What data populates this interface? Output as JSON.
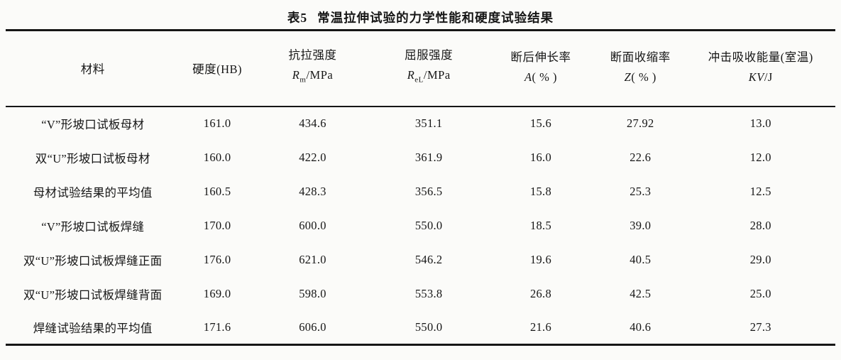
{
  "table": {
    "caption_label": "表5",
    "caption_title": "常温拉伸试验的力学性能和硬度试验结果",
    "columns": [
      {
        "label": "材料"
      },
      {
        "label": "硬度(HB)"
      },
      {
        "label": "抗拉强度",
        "symbol": "R",
        "subscript": "m",
        "unit": "/MPa"
      },
      {
        "label": "屈服强度",
        "symbol": "R",
        "subscript": "eL",
        "unit": "/MPa"
      },
      {
        "label": "断后伸长率",
        "symbol": "A",
        "subscript": "",
        "unit": "( % )"
      },
      {
        "label": "断面收缩率",
        "symbol": "Z",
        "subscript": "",
        "unit": "( % )"
      },
      {
        "label": "冲击吸收能量(室温)",
        "symbol": "KV",
        "subscript": "",
        "unit": "/J"
      }
    ],
    "rows": [
      {
        "material": "“V”形坡口试板母材",
        "values": [
          "161.0",
          "434.6",
          "351.1",
          "15.6",
          "27.92",
          "13.0"
        ]
      },
      {
        "material": "双“U”形坡口试板母材",
        "values": [
          "160.0",
          "422.0",
          "361.9",
          "16.0",
          "22.6",
          "12.0"
        ]
      },
      {
        "material": "母材试验结果的平均值",
        "values": [
          "160.5",
          "428.3",
          "356.5",
          "15.8",
          "25.3",
          "12.5"
        ]
      },
      {
        "material": "“V”形坡口试板焊缝",
        "values": [
          "170.0",
          "600.0",
          "550.0",
          "18.5",
          "39.0",
          "28.0"
        ]
      },
      {
        "material": "双“U”形坡口试板焊缝正面",
        "values": [
          "176.0",
          "621.0",
          "546.2",
          "19.6",
          "40.5",
          "29.0"
        ]
      },
      {
        "material": "双“U”形坡口试板焊缝背面",
        "values": [
          "169.0",
          "598.0",
          "553.8",
          "26.8",
          "42.5",
          "25.0"
        ]
      },
      {
        "material": "焊缝试验结果的平均值",
        "values": [
          "171.6",
          "606.0",
          "550.0",
          "21.6",
          "40.6",
          "27.3"
        ]
      }
    ]
  }
}
